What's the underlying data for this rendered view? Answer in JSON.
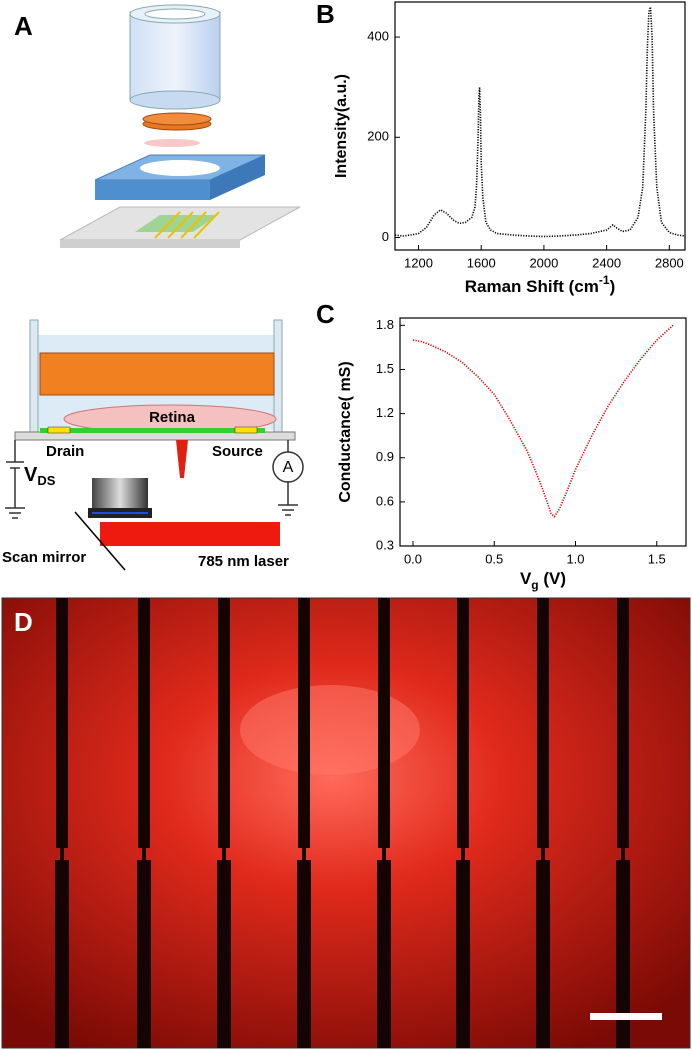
{
  "panel_labels": [
    "A",
    "B",
    "C",
    "D"
  ],
  "diagram": {
    "retina": "Retina",
    "drain": "Drain",
    "source": "Source",
    "ammeter": "A",
    "vds": [
      "V",
      "DS"
    ],
    "scan_mirror": "Scan mirror",
    "laser": "785 nm laser"
  },
  "chart_data": [
    {
      "type": "line",
      "y_label": "Intensity(a.u.)",
      "x_label": [
        "Raman Shift (cm",
        "-1",
        ")"
      ],
      "color": "#000000",
      "x": [
        1050,
        1100,
        1150,
        1200,
        1250,
        1300,
        1340,
        1380,
        1420,
        1460,
        1500,
        1540,
        1560,
        1570,
        1580,
        1585,
        1590,
        1595,
        1600,
        1610,
        1630,
        1660,
        1700,
        1800,
        1900,
        2000,
        2100,
        2200,
        2300,
        2400,
        2440,
        2460,
        2500,
        2550,
        2600,
        2630,
        2650,
        2660,
        2670,
        2680,
        2690,
        2700,
        2720,
        2750,
        2800,
        2850,
        2900
      ],
      "values": [
        5,
        3,
        5,
        8,
        20,
        45,
        55,
        48,
        35,
        28,
        30,
        40,
        60,
        100,
        200,
        280,
        300,
        250,
        150,
        80,
        30,
        15,
        8,
        5,
        3,
        2,
        3,
        5,
        8,
        15,
        25,
        20,
        12,
        15,
        40,
        100,
        250,
        380,
        450,
        460,
        400,
        250,
        100,
        30,
        10,
        5,
        3
      ],
      "xlim": [
        1050,
        2900
      ],
      "ylim": [
        -25,
        470
      ],
      "xticks": [
        1200,
        1600,
        2000,
        2400,
        2800
      ],
      "yticks": [
        0,
        200,
        400
      ]
    },
    {
      "type": "line",
      "y_label": "Conductance( mS)",
      "x_label": [
        "V",
        "g",
        " (V)"
      ],
      "color": "#cc0000",
      "x": [
        0,
        0.05,
        0.1,
        0.2,
        0.3,
        0.4,
        0.5,
        0.6,
        0.7,
        0.75,
        0.8,
        0.85,
        0.87,
        0.9,
        0.95,
        1.0,
        1.1,
        1.2,
        1.3,
        1.4,
        1.5,
        1.6
      ],
      "values": [
        1.7,
        1.69,
        1.67,
        1.62,
        1.55,
        1.45,
        1.33,
        1.15,
        0.95,
        0.82,
        0.68,
        0.52,
        0.5,
        0.55,
        0.68,
        0.82,
        1.05,
        1.25,
        1.42,
        1.57,
        1.7,
        1.8
      ],
      "xlim": [
        -0.08,
        1.68
      ],
      "ylim": [
        0.3,
        1.85
      ],
      "xticks": [
        {
          "value": 0,
          "label": "0.0"
        },
        0.5,
        {
          "value": 1,
          "label": "1.0"
        },
        1.5
      ],
      "yticks": [
        0.3,
        0.6,
        0.9,
        1.2,
        1.5,
        1.8
      ]
    }
  ]
}
